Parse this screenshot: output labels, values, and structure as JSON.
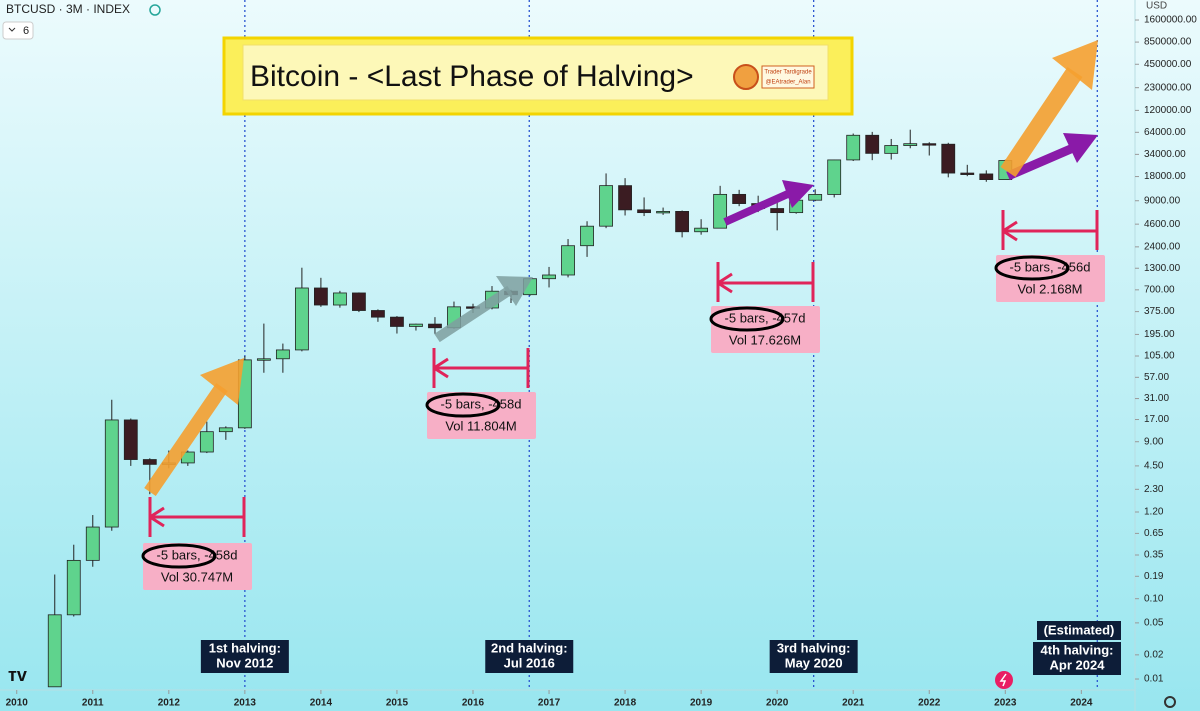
{
  "header": {
    "symbol": "BTCUSD · 3M · INDEX",
    "indicator": "6",
    "unit": "USD"
  },
  "chart_data": {
    "type": "candlestick",
    "title": "Bitcoin - <Last Phase of Halving>",
    "logo": [
      "Trader Tardigrade",
      "@EAtrader_Alan"
    ],
    "log_scale": true,
    "grid": false,
    "up_color": "#5fd38d",
    "down_color": "#3b1c22",
    "x": [
      2010.5,
      2010.75,
      2011.0,
      2011.25,
      2011.5,
      2011.75,
      2012.0,
      2012.25,
      2012.5,
      2012.75,
      2013.0,
      2013.25,
      2013.5,
      2013.75,
      2014.0,
      2014.25,
      2014.5,
      2014.75,
      2015.0,
      2015.25,
      2015.5,
      2015.75,
      2016.0,
      2016.25,
      2016.5,
      2016.75,
      2017.0,
      2017.25,
      2017.5,
      2017.75,
      2018.0,
      2018.25,
      2018.5,
      2018.75,
      2019.0,
      2019.25,
      2019.5,
      2019.75,
      2020.0,
      2020.25,
      2020.5,
      2020.75,
      2021.0,
      2021.25,
      2021.5,
      2021.75,
      2022.0,
      2022.25,
      2022.5,
      2022.75,
      2023.0
    ],
    "open": [
      0.008,
      0.063,
      0.3,
      0.78,
      16.8,
      5.4,
      4.7,
      4.9,
      6.7,
      12,
      13.4,
      94,
      97,
      125,
      738,
      453,
      640,
      387,
      320,
      245,
      262,
      236,
      430,
      416,
      673,
      609,
      963,
      1071,
      2480,
      4340,
      13880,
      6930,
      6400,
      6630,
      3700,
      4100,
      10800,
      8300,
      7200,
      6400,
      9140,
      10780,
      29000,
      58800,
      35000,
      43800,
      46200,
      45500,
      19900,
      19400,
      16500
    ],
    "high": [
      0.2,
      0.47,
      1.1,
      30,
      17.5,
      5.6,
      7,
      7,
      16,
      14,
      105,
      266,
      150,
      1320,
      988,
      680,
      650,
      400,
      330,
      265,
      320,
      500,
      470,
      780,
      700,
      980,
      1350,
      3000,
      5000,
      19700,
      17200,
      9900,
      7400,
      6800,
      5300,
      13800,
      12300,
      10400,
      10500,
      10400,
      12500,
      29300,
      61800,
      64800,
      52900,
      69000,
      48200,
      47400,
      25200,
      21500,
      29200
    ],
    "low": [
      0.008,
      0.06,
      0.25,
      0.7,
      4.5,
      2.0,
      4.2,
      4.5,
      6.5,
      9.5,
      13,
      65,
      65,
      120,
      430,
      420,
      370,
      280,
      200,
      218,
      198,
      230,
      360,
      400,
      480,
      590,
      750,
      1000,
      1800,
      4100,
      5900,
      5800,
      6000,
      3150,
      3400,
      4100,
      7700,
      6500,
      3850,
      6200,
      8900,
      9900,
      28100,
      28800,
      29300,
      40500,
      32900,
      17600,
      18200,
      15500,
      16500
    ],
    "close": [
      0.063,
      0.3,
      0.78,
      16.8,
      5.4,
      4.7,
      4.9,
      6.7,
      12,
      13.4,
      94,
      97,
      125,
      738,
      453,
      640,
      387,
      320,
      245,
      262,
      236,
      430,
      416,
      673,
      609,
      963,
      1071,
      2480,
      4340,
      13880,
      6930,
      6400,
      6630,
      3700,
      4100,
      10800,
      8300,
      7200,
      6400,
      9140,
      10780,
      29000,
      58800,
      35000,
      43800,
      46200,
      45500,
      19900,
      19400,
      16500,
      28500
    ],
    "xlim": [
      2009.78,
      2024.64
    ],
    "xticks": [
      2010,
      2011,
      2012,
      2013,
      2014,
      2015,
      2016,
      2017,
      2018,
      2019,
      2020,
      2021,
      2022,
      2023,
      2024
    ],
    "ylim": [
      0.0073,
      2840000
    ],
    "yticks": [
      {
        "value": 1600000,
        "label": "1600000.00"
      },
      {
        "value": 850000,
        "label": "850000.00"
      },
      {
        "value": 450000,
        "label": "450000.00"
      },
      {
        "value": 230000,
        "label": "230000.00"
      },
      {
        "value": 120000,
        "label": "120000.00"
      },
      {
        "value": 64000,
        "label": "64000.00"
      },
      {
        "value": 34000,
        "label": "34000.00"
      },
      {
        "value": 18000,
        "label": "18000.00"
      },
      {
        "value": 9000,
        "label": "9000.00"
      },
      {
        "value": 4600,
        "label": "4600.00"
      },
      {
        "value": 2400,
        "label": "2400.00"
      },
      {
        "value": 1300,
        "label": "1300.00"
      },
      {
        "value": 700,
        "label": "700.00"
      },
      {
        "value": 375,
        "label": "375.00"
      },
      {
        "value": 195,
        "label": "195.00"
      },
      {
        "value": 105,
        "label": "105.00"
      },
      {
        "value": 57,
        "label": "57.00"
      },
      {
        "value": 31,
        "label": "31.00"
      },
      {
        "value": 17,
        "label": "17.00"
      },
      {
        "value": 9,
        "label": "9.00"
      },
      {
        "value": 4.5,
        "label": "4.50"
      },
      {
        "value": 2.3,
        "label": "2.30"
      },
      {
        "value": 1.2,
        "label": "1.20"
      },
      {
        "value": 0.65,
        "label": "0.65"
      },
      {
        "value": 0.35,
        "label": "0.35"
      },
      {
        "value": 0.19,
        "label": "0.19"
      },
      {
        "value": 0.1,
        "label": "0.10"
      },
      {
        "value": 0.05,
        "label": "0.05"
      },
      {
        "value": 0.02,
        "label": "0.02"
      },
      {
        "value": 0.01,
        "label": "0.01"
      }
    ],
    "halvings": [
      {
        "x": 2013.0,
        "lines": [
          "1st halving:",
          "Nov 2012"
        ]
      },
      {
        "x": 2016.74,
        "lines": [
          "2nd halving:",
          "Jul 2016"
        ]
      },
      {
        "x": 2020.48,
        "lines": [
          "3rd halving:",
          "May 2020"
        ]
      },
      {
        "x": 2024.21,
        "lines": [
          "4th halving:",
          "Apr 2024"
        ],
        "note": "(Estimated)"
      }
    ],
    "measures": [
      {
        "bars": "-5 bars, -458d",
        "vol": "Vol 30.747M"
      },
      {
        "bars": "-5 bars, -458d",
        "vol": "Vol 11.804M"
      },
      {
        "bars": "-5 bars, -457d",
        "vol": "Vol 17.626M"
      },
      {
        "bars": "-5 bars, -456d",
        "vol": "Vol 2.168M"
      }
    ]
  }
}
